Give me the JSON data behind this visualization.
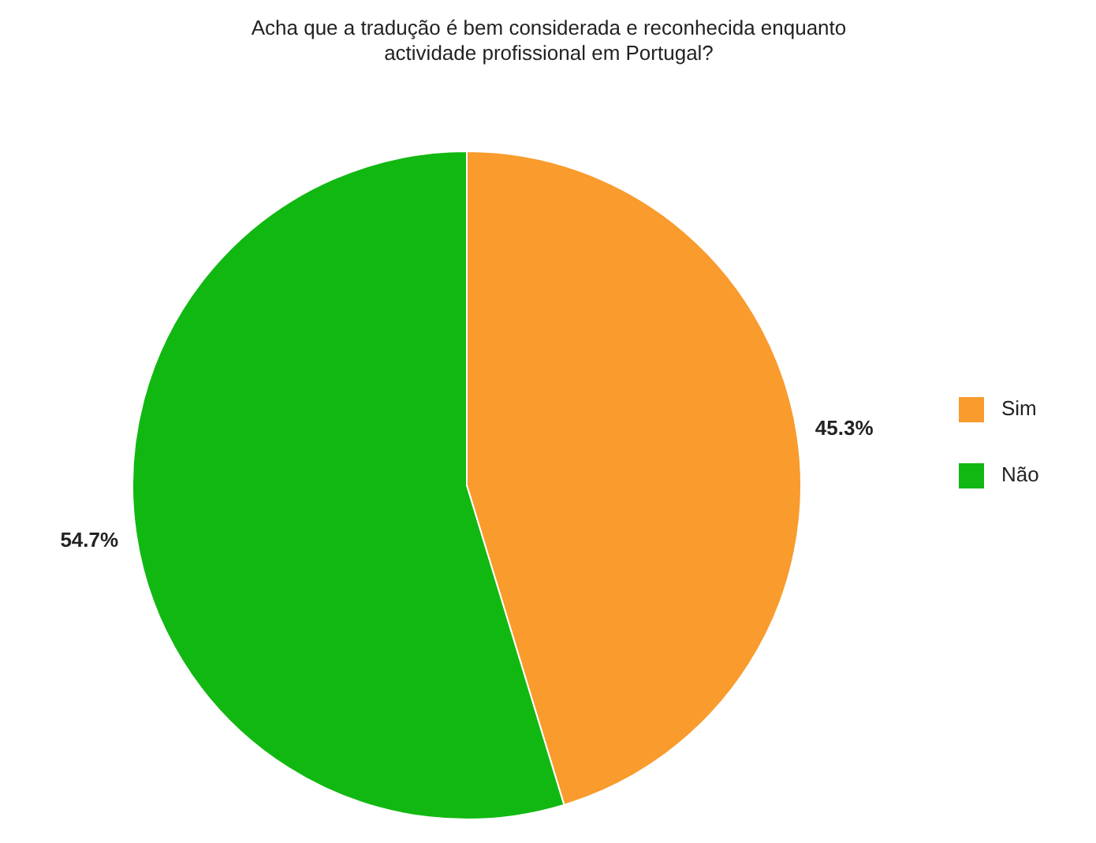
{
  "chart_data": {
    "type": "pie",
    "title": "Acha que a tradução é bem considerada e reconhecida enquanto actividade profissional em Portugal?",
    "categories": [
      "Sim",
      "Não"
    ],
    "values": [
      45.3,
      54.7
    ],
    "colors": [
      "#f99b2d",
      "#12b812"
    ],
    "value_labels": [
      "45.3%",
      "54.7%"
    ],
    "legend": "right"
  }
}
